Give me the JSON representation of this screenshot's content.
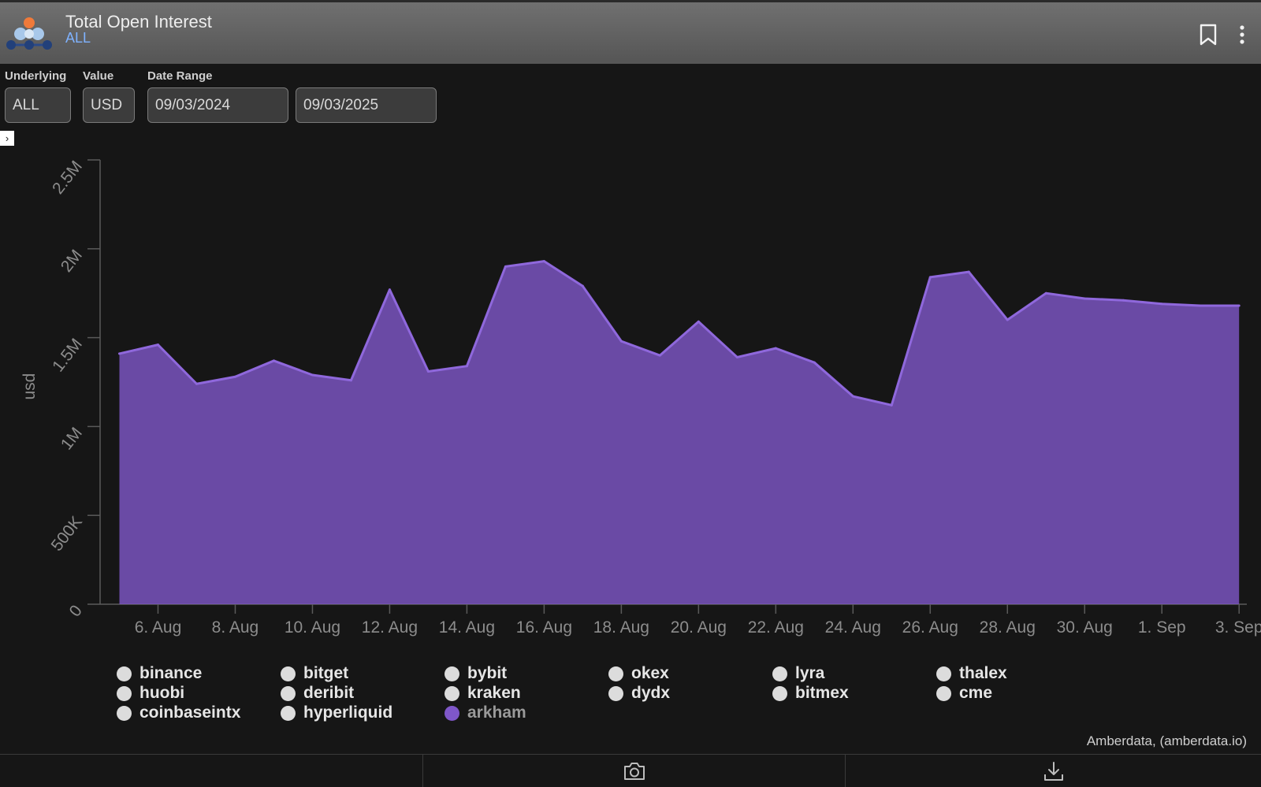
{
  "header": {
    "title": "Total Open Interest",
    "subtitle": "ALL"
  },
  "controls": {
    "underlying_label": "Underlying",
    "underlying_value": "ALL",
    "value_label": "Value",
    "value_value": "USD",
    "date_range_label": "Date Range",
    "date_start": "09/03/2024",
    "date_end": "09/03/2025"
  },
  "chart_data": {
    "type": "area",
    "ylabel": "usd",
    "ylim": [
      0,
      2500000
    ],
    "yticks": [
      0,
      500000,
      1000000,
      1500000,
      2000000,
      2500000
    ],
    "ytick_labels": [
      "0",
      "500K",
      "1M",
      "1.5M",
      "2M",
      "2.5M"
    ],
    "xlim_day": [
      4.5,
      34.2
    ],
    "xticks": [
      {
        "day": 6,
        "label": "6. Aug"
      },
      {
        "day": 8,
        "label": "8. Aug"
      },
      {
        "day": 10,
        "label": "10. Aug"
      },
      {
        "day": 12,
        "label": "12. Aug"
      },
      {
        "day": 14,
        "label": "14. Aug"
      },
      {
        "day": 16,
        "label": "16. Aug"
      },
      {
        "day": 18,
        "label": "18. Aug"
      },
      {
        "day": 20,
        "label": "20. Aug"
      },
      {
        "day": 22,
        "label": "22. Aug"
      },
      {
        "day": 24,
        "label": "24. Aug"
      },
      {
        "day": 26,
        "label": "26. Aug"
      },
      {
        "day": 28,
        "label": "28. Aug"
      },
      {
        "day": 30,
        "label": "30. Aug"
      },
      {
        "day": 32,
        "label": "1. Sep"
      },
      {
        "day": 34,
        "label": "3. Sep"
      }
    ],
    "x_dates": [
      "5 Aug",
      "6 Aug",
      "7 Aug",
      "8 Aug",
      "9 Aug",
      "10 Aug",
      "11 Aug",
      "12 Aug",
      "13 Aug",
      "14 Aug",
      "15 Aug",
      "16 Aug",
      "17 Aug",
      "18 Aug",
      "19 Aug",
      "20 Aug",
      "21 Aug",
      "22 Aug",
      "23 Aug",
      "24 Aug",
      "25 Aug",
      "26 Aug",
      "27 Aug",
      "28 Aug",
      "29 Aug",
      "30 Aug",
      "31 Aug",
      "1 Sep",
      "2 Sep",
      "3 Sep"
    ],
    "x_days": [
      5,
      6,
      7,
      8,
      9,
      10,
      11,
      12,
      13,
      14,
      15,
      16,
      17,
      18,
      19,
      20,
      21,
      22,
      23,
      24,
      25,
      26,
      27,
      28,
      29,
      30,
      31,
      32,
      33,
      34
    ],
    "series": [
      {
        "name": "arkham",
        "color": "#7f57c9",
        "values": [
          1410000,
          1460000,
          1240000,
          1280000,
          1370000,
          1290000,
          1260000,
          1770000,
          1310000,
          1340000,
          1900000,
          1930000,
          1790000,
          1480000,
          1400000,
          1590000,
          1390000,
          1440000,
          1360000,
          1170000,
          1120000,
          1840000,
          1870000,
          1600000,
          1750000,
          1720000,
          1710000,
          1690000,
          1680000,
          1680000
        ]
      }
    ],
    "grid": false,
    "legend_position": "bottom"
  },
  "legend": [
    {
      "label": "binance",
      "active": false
    },
    {
      "label": "bitget",
      "active": false
    },
    {
      "label": "bybit",
      "active": false
    },
    {
      "label": "okex",
      "active": false
    },
    {
      "label": "lyra",
      "active": false
    },
    {
      "label": "thalex",
      "active": false
    },
    {
      "label": "huobi",
      "active": false
    },
    {
      "label": "deribit",
      "active": false
    },
    {
      "label": "kraken",
      "active": false
    },
    {
      "label": "dydx",
      "active": false
    },
    {
      "label": "bitmex",
      "active": false
    },
    {
      "label": "cme",
      "active": false
    },
    {
      "label": "coinbaseintx",
      "active": false
    },
    {
      "label": "hyperliquid",
      "active": false
    },
    {
      "label": "arkham",
      "active": true
    }
  ],
  "credit": "Amberdata, (amberdata.io)",
  "footer": {
    "icons": [
      "camera-icon",
      "download-icon"
    ]
  }
}
